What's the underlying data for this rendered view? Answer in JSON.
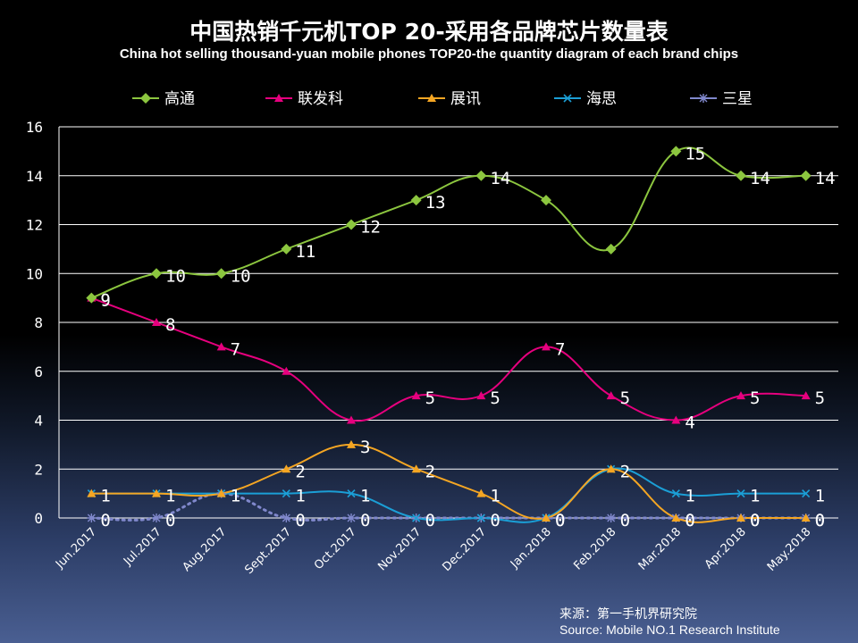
{
  "chart_data": {
    "type": "line",
    "title": "中国热销千元机TOP 20-采用各品牌芯片数量表",
    "subtitle": "China hot selling thousand-yuan mobile phones TOP20-the quantity diagram of each brand chips",
    "categories": [
      "Jun.2017",
      "Jul.2017",
      "Aug.2017",
      "Sept.2017",
      "Oct.2017",
      "Nov.2017",
      "Dec.2017",
      "Jan.2018",
      "Feb.2018",
      "Mar.2018",
      "Apr.2018",
      "May.2018"
    ],
    "ylim": [
      0,
      16
    ],
    "yticks": [
      0,
      2,
      4,
      6,
      8,
      10,
      12,
      14,
      16
    ],
    "legend_position": "top",
    "grid": true,
    "series": [
      {
        "name": "高通",
        "color": "#8cc63f",
        "marker": "diamond",
        "values": [
          9,
          10,
          10,
          11,
          12,
          13,
          14,
          13,
          11,
          15,
          14,
          14
        ],
        "labels": [
          "9",
          "10",
          "10",
          "11",
          "12",
          "13",
          "14",
          "",
          "",
          "15",
          "14",
          "14"
        ]
      },
      {
        "name": "联发科",
        "color": "#e6007e",
        "marker": "triangle",
        "values": [
          9,
          8,
          7,
          6,
          4,
          5,
          5,
          7,
          5,
          4,
          5,
          5
        ],
        "labels": [
          "9",
          "8",
          "7",
          "",
          "",
          "5",
          "5",
          "7",
          "5",
          "4",
          "5",
          "5"
        ]
      },
      {
        "name": "展讯",
        "color": "#f5a623",
        "marker": "triangle",
        "values": [
          1,
          1,
          1,
          2,
          3,
          2,
          1,
          0,
          2,
          0,
          0,
          0
        ],
        "labels": [
          "1",
          "1",
          "1",
          "2",
          "3",
          "2",
          "1",
          "0",
          "2",
          "0",
          "0",
          "0"
        ]
      },
      {
        "name": "海思",
        "color": "#1b9fd6",
        "marker": "x",
        "values": [
          1,
          1,
          1,
          1,
          1,
          0,
          0,
          0,
          2,
          1,
          1,
          1
        ],
        "labels": [
          "",
          "",
          "",
          "1",
          "1",
          "",
          "",
          "",
          "",
          "1",
          "1",
          "1"
        ]
      },
      {
        "name": "三星",
        "color": "#8088cc",
        "marker": "star",
        "values": [
          0,
          0,
          1,
          0,
          0,
          0,
          0,
          0,
          0,
          0,
          0,
          0
        ],
        "labels": [
          "0",
          "0",
          "1",
          "0",
          "0",
          "0",
          "0",
          "0",
          "0",
          "0",
          "0",
          "0"
        ]
      }
    ]
  },
  "source_cn": "来源：第一手机界研究院",
  "source_en": "Source: Mobile NO.1 Research Institute"
}
